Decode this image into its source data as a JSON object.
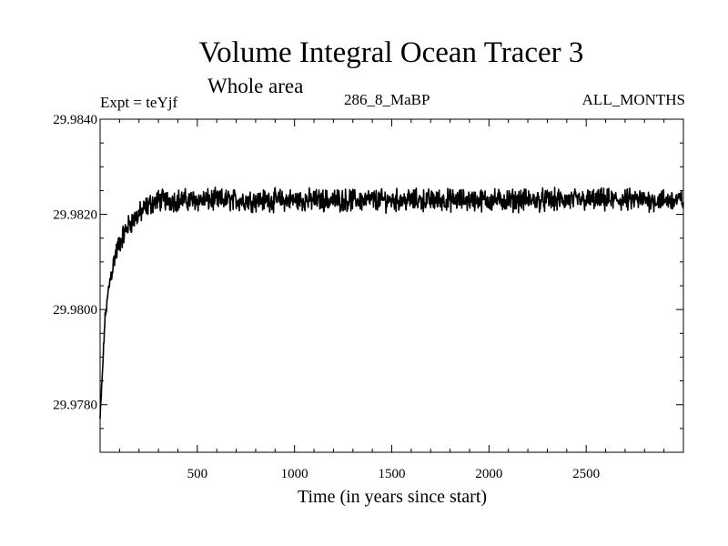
{
  "header": {
    "title": "Volume Integral Ocean Tracer 3",
    "subtitle": "Whole area",
    "expt": "Expt = teYjf",
    "run": "286_8_MaBP",
    "period": "ALL_MONTHS"
  },
  "chart_data": {
    "type": "line",
    "title": "Volume Integral Ocean Tracer 3",
    "subtitle": "Whole area",
    "xlabel": "Time (in years since start)",
    "ylabel": "",
    "xlim": [
      0,
      3000
    ],
    "ylim": [
      29.977,
      29.984
    ],
    "x_ticks": [
      500,
      1000,
      1500,
      2000,
      2500
    ],
    "x_tick_labels": [
      "500",
      "1000",
      "1500",
      "2000",
      "2500"
    ],
    "y_ticks": [
      29.978,
      29.98,
      29.982,
      29.984
    ],
    "y_tick_labels": [
      "29.9780",
      "29.9800",
      "29.9820",
      "29.9840"
    ],
    "grid": false,
    "series": [
      {
        "color": "#000000",
        "x": [
          0,
          10,
          25,
          50,
          75,
          100,
          150,
          200,
          250,
          300,
          400,
          500,
          750,
          1000,
          1250,
          1500,
          1750,
          2000,
          2250,
          2500,
          2750,
          3000
        ],
        "y": [
          29.9777,
          29.9785,
          29.9798,
          29.9806,
          29.9811,
          29.9814,
          29.9818,
          29.982,
          29.9822,
          29.9823,
          29.9823,
          29.9823,
          29.9823,
          29.9823,
          29.9823,
          29.9823,
          29.9823,
          29.9823,
          29.9823,
          29.9823,
          29.9823,
          29.9823
        ],
        "noise_amplitude": 0.00035
      }
    ]
  }
}
